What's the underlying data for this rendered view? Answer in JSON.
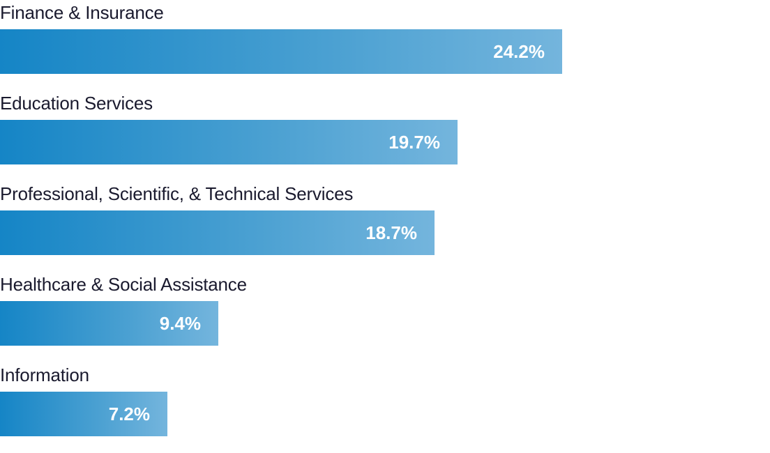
{
  "chart_data": {
    "type": "bar",
    "orientation": "horizontal",
    "categories": [
      "Finance & Insurance",
      "Education Services",
      "Professional, Scientific, & Technical Services",
      "Healthcare & Social Assistance",
      "Information"
    ],
    "values": [
      24.2,
      19.7,
      18.7,
      9.4,
      7.2
    ],
    "value_labels": [
      "24.2%",
      "19.7%",
      "18.7%",
      "9.4%",
      "7.2%"
    ],
    "unit": "%",
    "title": "",
    "xlabel": "",
    "ylabel": "",
    "grid": false,
    "legend": "none",
    "colors": {
      "bar_start": "#1585c6",
      "bar_end": "#74b5dd",
      "label_text": "#1a1a2e",
      "value_text": "#ffffff"
    }
  }
}
